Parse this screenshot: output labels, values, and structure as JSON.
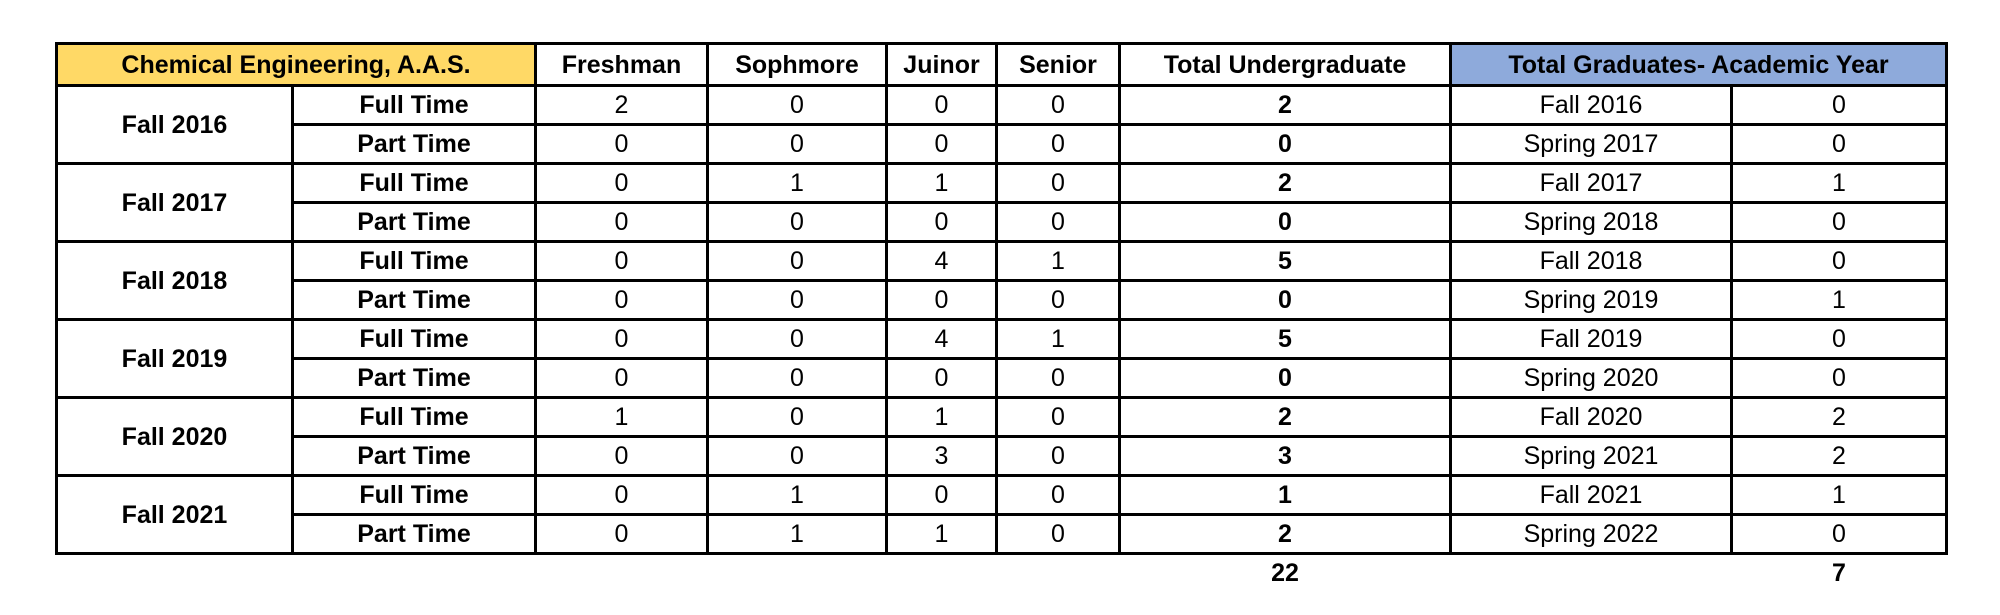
{
  "header": {
    "program": "Chemical Engineering, A.A.S.",
    "freshman": "Freshman",
    "sophomore": "Sophmore",
    "junior": "Juinor",
    "senior": "Senior",
    "total_undergrad": "Total Undergraduate",
    "total_grads": "Total Graduates- Academic Year"
  },
  "rows": [
    {
      "term": "Fall 2016",
      "full": {
        "label": "Full Time",
        "fr": "2",
        "so": "0",
        "jr": "0",
        "sr": "0",
        "total": "2",
        "grad_term": "Fall 2016",
        "grad": "0"
      },
      "part": {
        "label": "Part Time",
        "fr": "0",
        "so": "0",
        "jr": "0",
        "sr": "0",
        "total": "0",
        "grad_term": "Spring 2017",
        "grad": "0"
      }
    },
    {
      "term": "Fall 2017",
      "full": {
        "label": "Full Time",
        "fr": "0",
        "so": "1",
        "jr": "1",
        "sr": "0",
        "total": "2",
        "grad_term": "Fall 2017",
        "grad": "1"
      },
      "part": {
        "label": "Part Time",
        "fr": "0",
        "so": "0",
        "jr": "0",
        "sr": "0",
        "total": "0",
        "grad_term": "Spring 2018",
        "grad": "0"
      }
    },
    {
      "term": "Fall 2018",
      "full": {
        "label": "Full Time",
        "fr": "0",
        "so": "0",
        "jr": "4",
        "sr": "1",
        "total": "5",
        "grad_term": "Fall 2018",
        "grad": "0"
      },
      "part": {
        "label": "Part Time",
        "fr": "0",
        "so": "0",
        "jr": "0",
        "sr": "0",
        "total": "0",
        "grad_term": "Spring 2019",
        "grad": "1"
      }
    },
    {
      "term": "Fall 2019",
      "full": {
        "label": "Full Time",
        "fr": "0",
        "so": "0",
        "jr": "4",
        "sr": "1",
        "total": "5",
        "grad_term": "Fall 2019",
        "grad": "0"
      },
      "part": {
        "label": "Part Time",
        "fr": "0",
        "so": "0",
        "jr": "0",
        "sr": "0",
        "total": "0",
        "grad_term": "Spring 2020",
        "grad": "0"
      }
    },
    {
      "term": "Fall 2020",
      "full": {
        "label": "Full Time",
        "fr": "1",
        "so": "0",
        "jr": "1",
        "sr": "0",
        "total": "2",
        "grad_term": "Fall 2020",
        "grad": "2"
      },
      "part": {
        "label": "Part Time",
        "fr": "0",
        "so": "0",
        "jr": "3",
        "sr": "0",
        "total": "3",
        "grad_term": "Spring 2021",
        "grad": "2"
      }
    },
    {
      "term": "Fall 2021",
      "full": {
        "label": "Full Time",
        "fr": "0",
        "so": "1",
        "jr": "0",
        "sr": "0",
        "total": "1",
        "grad_term": "Fall 2021",
        "grad": "1"
      },
      "part": {
        "label": "Part Time",
        "fr": "0",
        "so": "1",
        "jr": "1",
        "sr": "0",
        "total": "2",
        "grad_term": "Spring 2022",
        "grad": "0"
      }
    }
  ],
  "totals": {
    "undergrad": "22",
    "grads": "7"
  },
  "colors": {
    "program_header": "#ffd966",
    "grad_header": "#8eaadb"
  }
}
